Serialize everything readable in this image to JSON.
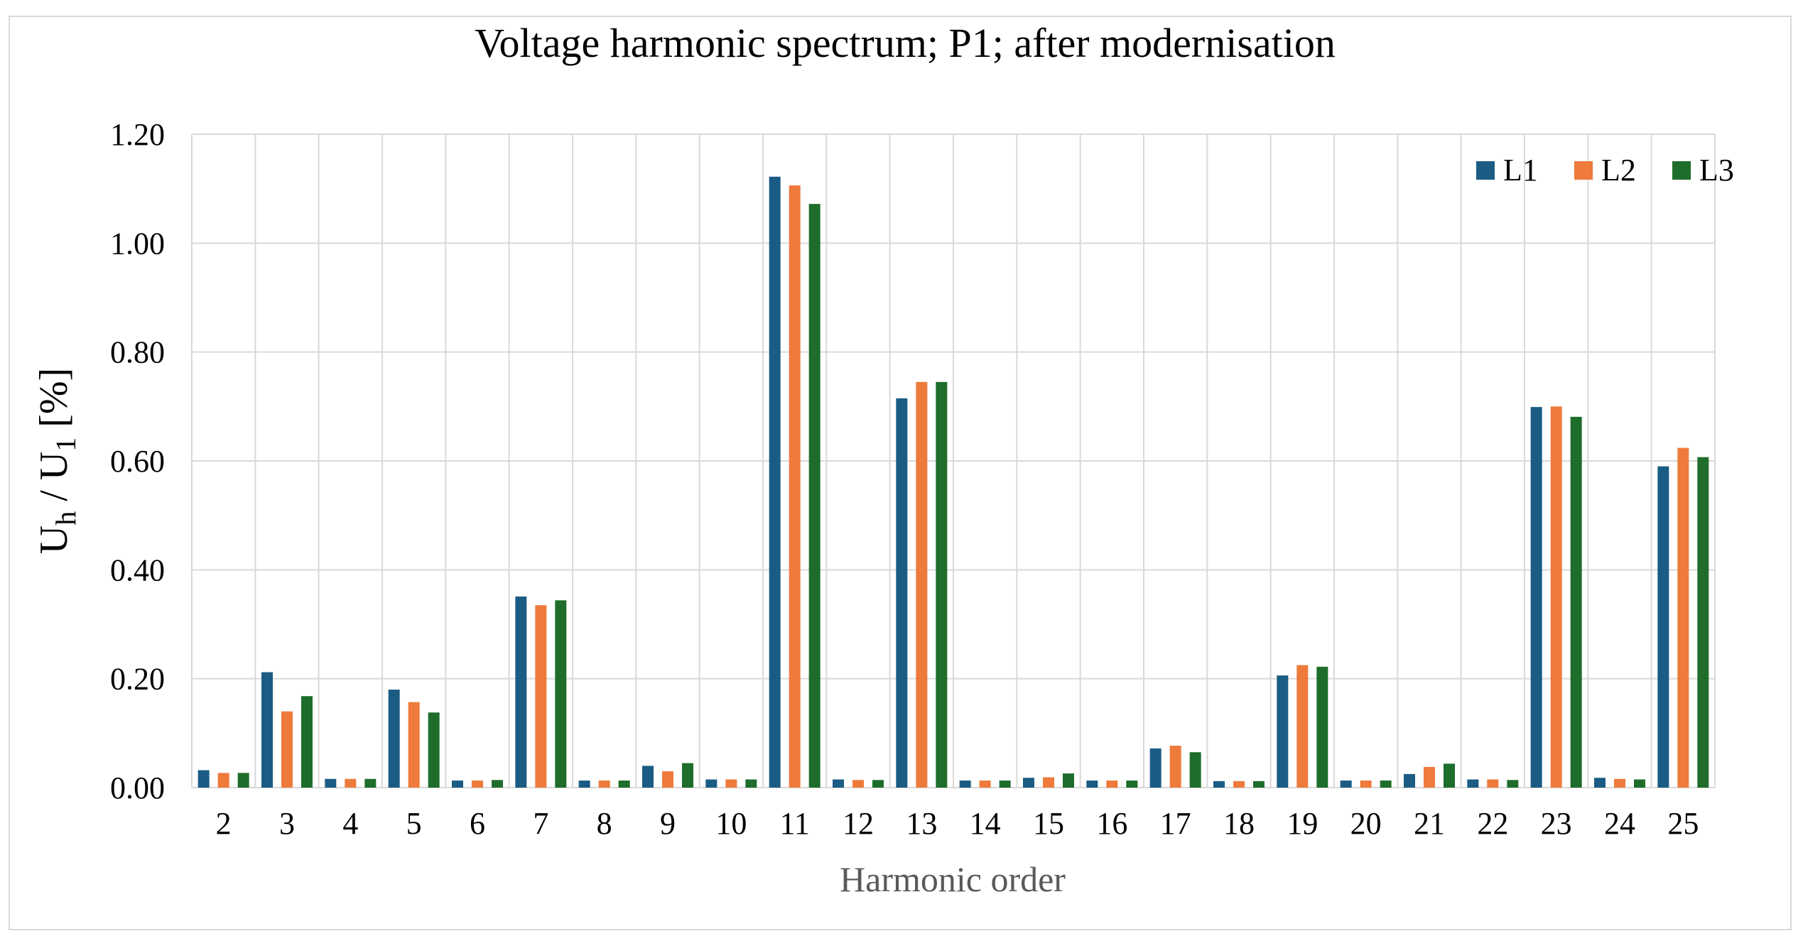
{
  "chart_data": {
    "type": "bar",
    "title": "Voltage harmonic spectrum; P1; after modernisation",
    "xlabel": "Harmonic order",
    "ylabel": {
      "base1": "U",
      "sub1": "h",
      "sep": " / ",
      "base2": "U",
      "sub2": "1",
      "unit": " [%]"
    },
    "ylim": [
      0,
      1.2
    ],
    "yticks": [
      "0.00",
      "0.20",
      "0.40",
      "0.60",
      "0.80",
      "1.00",
      "1.20"
    ],
    "grid": true,
    "legend_position": "top-right",
    "categories": [
      "2",
      "3",
      "4",
      "5",
      "6",
      "7",
      "8",
      "9",
      "10",
      "11",
      "12",
      "13",
      "14",
      "15",
      "16",
      "17",
      "18",
      "19",
      "20",
      "21",
      "22",
      "23",
      "24",
      "25"
    ],
    "series": [
      {
        "name": "L1",
        "color": "#1b5c84",
        "values": [
          0.032,
          0.212,
          0.016,
          0.18,
          0.013,
          0.351,
          0.013,
          0.04,
          0.015,
          1.122,
          0.015,
          0.715,
          0.013,
          0.018,
          0.013,
          0.072,
          0.012,
          0.206,
          0.013,
          0.025,
          0.015,
          0.699,
          0.018,
          0.59
        ]
      },
      {
        "name": "L2",
        "color": "#ee7a3b",
        "values": [
          0.027,
          0.14,
          0.016,
          0.157,
          0.013,
          0.335,
          0.013,
          0.03,
          0.015,
          1.106,
          0.014,
          0.745,
          0.013,
          0.019,
          0.013,
          0.077,
          0.012,
          0.225,
          0.013,
          0.038,
          0.015,
          0.7,
          0.016,
          0.624
        ]
      },
      {
        "name": "L3",
        "color": "#1e6d2b",
        "values": [
          0.027,
          0.168,
          0.016,
          0.138,
          0.014,
          0.344,
          0.013,
          0.045,
          0.015,
          1.072,
          0.014,
          0.745,
          0.013,
          0.026,
          0.013,
          0.065,
          0.012,
          0.222,
          0.013,
          0.044,
          0.014,
          0.681,
          0.015,
          0.607
        ]
      }
    ]
  }
}
